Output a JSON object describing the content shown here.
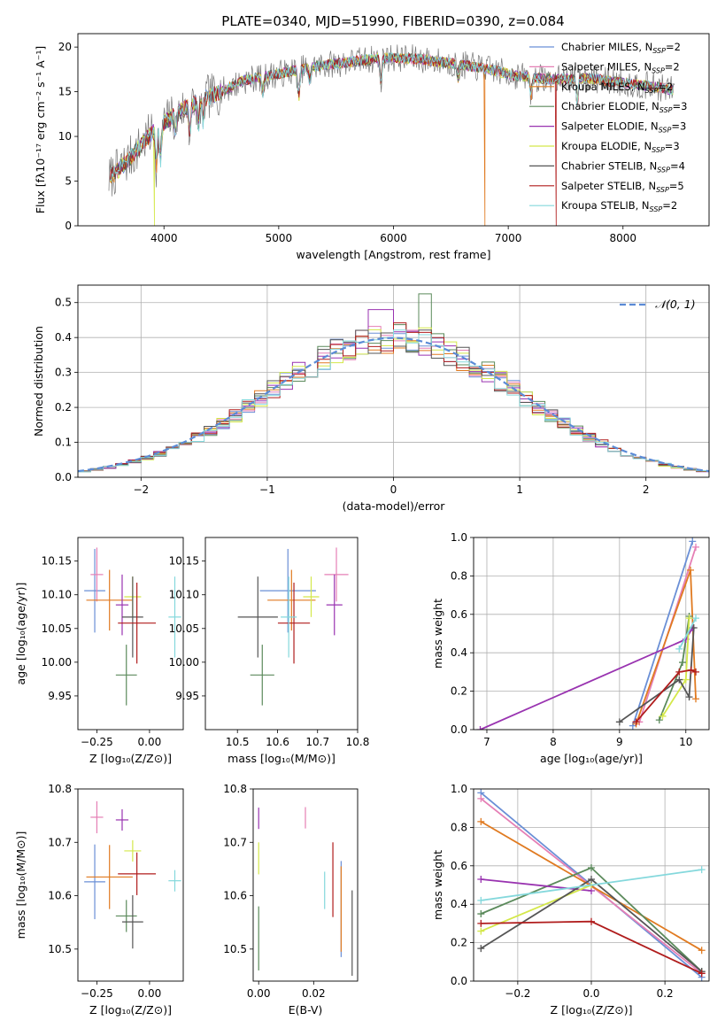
{
  "figure_title": "PLATE=0340, MJD=51990, FIBERID=0390, z=0.084",
  "colors": {
    "Chabrier MILES": "#6a8fd6",
    "Salpeter MILES": "#e57fb5",
    "Kroupa MILES": "#e07a20",
    "Chabrier ELODIE": "#5b8a5b",
    "Salpeter ELODIE": "#9933b0",
    "Kroupa ELODIE": "#d4e84a",
    "Chabrier STELIB": "#555555",
    "Salpeter STELIB": "#b01c1c",
    "Kroupa STELIB": "#84d8dc",
    "normal": "#5b8bd6"
  },
  "chart_data": [
    {
      "id": "spectrum",
      "type": "line",
      "xlabel": "wavelength [Angstrom, rest frame]",
      "ylabel": "Flux [fλ10⁻¹⁷ erg cm⁻² s⁻¹ A⁻¹]",
      "xlim": [
        3250,
        8750
      ],
      "ylim": [
        0,
        21.5
      ],
      "xticks": [
        4000,
        5000,
        6000,
        7000,
        8000
      ],
      "yticks": [
        0,
        5,
        10,
        15,
        20
      ],
      "legend_position": "top-right",
      "legend": [
        {
          "name": "Chabrier MILES",
          "label": "Chabrier MILES, N",
          "sub": "SSP",
          "tail": "=2"
        },
        {
          "name": "Salpeter MILES",
          "label": "Salpeter MILES, N",
          "sub": "SSP",
          "tail": "=2"
        },
        {
          "name": "Kroupa MILES",
          "label": "Kroupa MILES, N",
          "sub": "SSP",
          "tail": "=2"
        },
        {
          "name": "Chabrier ELODIE",
          "label": "Chabrier ELODIE, N",
          "sub": "SSP",
          "tail": "=3"
        },
        {
          "name": "Salpeter ELODIE",
          "label": "Salpeter ELODIE, N",
          "sub": "SSP",
          "tail": "=3"
        },
        {
          "name": "Kroupa ELODIE",
          "label": "Kroupa ELODIE, N",
          "sub": "SSP",
          "tail": "=3"
        },
        {
          "name": "Chabrier STELIB",
          "label": "Chabrier STELIB, N",
          "sub": "SSP",
          "tail": "=4"
        },
        {
          "name": "Salpeter STELIB",
          "label": "Salpeter STELIB, N",
          "sub": "SSP",
          "tail": "=5"
        },
        {
          "name": "Kroupa STELIB",
          "label": "Kroupa STELIB, N",
          "sub": "SSP",
          "tail": "=2"
        }
      ],
      "continuum": [
        [
          3500,
          5
        ],
        [
          3700,
          7.5
        ],
        [
          3900,
          10.5
        ],
        [
          4100,
          12.5
        ],
        [
          4300,
          14
        ],
        [
          4500,
          15
        ],
        [
          4700,
          16.3
        ],
        [
          5000,
          17
        ],
        [
          5300,
          17.8
        ],
        [
          5600,
          18.3
        ],
        [
          5900,
          18.8
        ],
        [
          6200,
          18.7
        ],
        [
          6500,
          18.2
        ],
        [
          6800,
          17.6
        ],
        [
          7100,
          16.7
        ],
        [
          7400,
          16.4
        ],
        [
          7700,
          16.5
        ],
        [
          8000,
          16.0
        ],
        [
          8300,
          15.5
        ],
        [
          8450,
          15.2
        ]
      ],
      "absorption_features": [
        [
          3934,
          4
        ],
        [
          3969,
          4
        ],
        [
          4102,
          2
        ],
        [
          4226,
          3
        ],
        [
          4300,
          3
        ],
        [
          4340,
          2.5
        ],
        [
          4861,
          2
        ],
        [
          5175,
          3
        ],
        [
          5270,
          1.5
        ],
        [
          5890,
          2.5
        ],
        [
          6563,
          1.5
        ],
        [
          7200,
          2
        ],
        [
          7600,
          3
        ]
      ],
      "vertical_drops": [
        {
          "series": "Kroupa ELODIE",
          "x": 3920
        },
        {
          "series": "Kroupa MILES",
          "x": 6795
        },
        {
          "series": "Salpeter STELIB",
          "x": 7420
        }
      ]
    },
    {
      "id": "residual_histogram",
      "type": "histogram",
      "xlabel": "(data-model)/error",
      "ylabel": "Normed distribution",
      "xlim": [
        -2.5,
        2.5
      ],
      "ylim": [
        0,
        0.55
      ],
      "xticks": [
        -2,
        -1,
        0,
        1,
        2
      ],
      "yticks": [
        0.0,
        0.1,
        0.2,
        0.3,
        0.4,
        0.5
      ],
      "grid": true,
      "bin_width": 0.1,
      "legend_position": "top-right",
      "legend_label": "𝒩(0, 1)",
      "overlay": {
        "type": "gaussian",
        "mean": 0,
        "sigma": 1,
        "style": "dashed"
      },
      "series_names": [
        "Chabrier MILES",
        "Salpeter MILES",
        "Kroupa MILES",
        "Chabrier ELODIE",
        "Salpeter ELODIE",
        "Kroupa ELODIE",
        "Chabrier STELIB",
        "Salpeter STELIB",
        "Kroupa STELIB"
      ]
    },
    {
      "id": "age_vs_Z",
      "type": "errorbar",
      "xlabel": "Z [log₁₀(Z/Z⊙)]",
      "ylabel": "age  [log₁₀(age/yr)]",
      "xlim": [
        -0.34,
        0.16
      ],
      "ylim": [
        9.9,
        10.185
      ],
      "xticks": [
        -0.25,
        0.0
      ],
      "yticks": [
        9.95,
        10.0,
        10.05,
        10.1,
        10.15
      ],
      "points": [
        {
          "series": "Chabrier MILES",
          "x": -0.26,
          "xerr": 0.05,
          "y": 10.106,
          "yerr": 0.062
        },
        {
          "series": "Salpeter MILES",
          "x": -0.25,
          "xerr": 0.03,
          "y": 10.13,
          "yerr": 0.04
        },
        {
          "series": "Kroupa MILES",
          "x": -0.19,
          "xerr": 0.11,
          "y": 10.092,
          "yerr": 0.045
        },
        {
          "series": "Chabrier ELODIE",
          "x": -0.11,
          "xerr": 0.05,
          "y": 9.981,
          "yerr": 0.045
        },
        {
          "series": "Salpeter ELODIE",
          "x": -0.13,
          "xerr": 0.03,
          "y": 10.085,
          "yerr": 0.045
        },
        {
          "series": "Kroupa ELODIE",
          "x": -0.08,
          "xerr": 0.04,
          "y": 10.097,
          "yerr": 0.03
        },
        {
          "series": "Chabrier STELIB",
          "x": -0.08,
          "xerr": 0.05,
          "y": 10.067,
          "yerr": 0.06
        },
        {
          "series": "Salpeter STELIB",
          "x": -0.06,
          "xerr": 0.09,
          "y": 10.058,
          "yerr": 0.06
        },
        {
          "series": "Kroupa STELIB",
          "x": 0.12,
          "xerr": 0.03,
          "y": 10.067,
          "yerr": 0.06
        }
      ]
    },
    {
      "id": "age_vs_mass",
      "type": "errorbar",
      "xlabel": "mass [log₁₀(M/M⊙)]",
      "ylabel": "",
      "xlim": [
        10.42,
        10.8
      ],
      "ylim": [
        9.9,
        10.185
      ],
      "xticks": [
        10.5,
        10.6,
        10.7,
        10.8
      ],
      "yticks": [
        9.95,
        10.0,
        10.05,
        10.1,
        10.15
      ],
      "points": [
        {
          "series": "Chabrier MILES",
          "x": 10.626,
          "xerr": 0.07,
          "y": 10.106,
          "yerr": 0.062
        },
        {
          "series": "Salpeter MILES",
          "x": 10.747,
          "xerr": 0.03,
          "y": 10.13,
          "yerr": 0.04
        },
        {
          "series": "Kroupa MILES",
          "x": 10.635,
          "xerr": 0.06,
          "y": 10.092,
          "yerr": 0.045
        },
        {
          "series": "Chabrier ELODIE",
          "x": 10.562,
          "xerr": 0.03,
          "y": 9.981,
          "yerr": 0.045
        },
        {
          "series": "Salpeter ELODIE",
          "x": 10.742,
          "xerr": 0.02,
          "y": 10.085,
          "yerr": 0.045
        },
        {
          "series": "Kroupa ELODIE",
          "x": 10.684,
          "xerr": 0.02,
          "y": 10.097,
          "yerr": 0.03
        },
        {
          "series": "Chabrier STELIB",
          "x": 10.551,
          "xerr": 0.05,
          "y": 10.067,
          "yerr": 0.06
        },
        {
          "series": "Salpeter STELIB",
          "x": 10.641,
          "xerr": 0.04,
          "y": 10.058,
          "yerr": 0.06
        },
        {
          "series": "Kroupa STELIB",
          "x": 10.628,
          "xerr": 0.02,
          "y": 10.067,
          "yerr": 0.06
        }
      ]
    },
    {
      "id": "weight_vs_age",
      "type": "line",
      "xlabel": "age  [log₁₀(age/yr)]",
      "ylabel": "mass weight",
      "xlim": [
        6.8,
        10.35
      ],
      "ylim": [
        0,
        1.0
      ],
      "xticks": [
        7,
        8,
        9,
        10
      ],
      "yticks": [
        0.0,
        0.2,
        0.4,
        0.6,
        0.8,
        1.0
      ],
      "grid": true,
      "series": [
        {
          "name": "Chabrier MILES",
          "points": [
            [
              9.2,
              0.02
            ],
            [
              10.1,
              0.98
            ]
          ]
        },
        {
          "name": "Salpeter MILES",
          "points": [
            [
              9.3,
              0.04
            ],
            [
              10.15,
              0.95
            ]
          ]
        },
        {
          "name": "Kroupa MILES",
          "points": [
            [
              9.25,
              0.03
            ],
            [
              10.07,
              0.83
            ],
            [
              10.15,
              0.16
            ]
          ]
        },
        {
          "name": "Chabrier ELODIE",
          "points": [
            [
              9.6,
              0.05
            ],
            [
              9.95,
              0.35
            ],
            [
              10.05,
              0.59
            ]
          ]
        },
        {
          "name": "Salpeter ELODIE",
          "points": [
            [
              6.9,
              0.0
            ],
            [
              10.0,
              0.47
            ],
            [
              10.1,
              0.53
            ]
          ]
        },
        {
          "name": "Kroupa ELODIE",
          "points": [
            [
              9.65,
              0.07
            ],
            [
              10.0,
              0.26
            ],
            [
              10.05,
              0.58
            ]
          ]
        },
        {
          "name": "Chabrier STELIB",
          "points": [
            [
              9.0,
              0.04
            ],
            [
              9.9,
              0.26
            ],
            [
              10.05,
              0.17
            ],
            [
              10.12,
              0.53
            ]
          ]
        },
        {
          "name": "Salpeter STELIB",
          "points": [
            [
              9.25,
              0.04
            ],
            [
              9.9,
              0.3
            ],
            [
              10.08,
              0.31
            ],
            [
              10.15,
              0.3
            ]
          ]
        },
        {
          "name": "Kroupa STELIB",
          "points": [
            [
              9.9,
              0.42
            ],
            [
              10.15,
              0.58
            ]
          ]
        }
      ]
    },
    {
      "id": "mass_vs_Z",
      "type": "errorbar",
      "xlabel": "Z [log₁₀(Z/Z⊙)]",
      "ylabel": "mass [log₁₀(M/M⊙)]",
      "xlim": [
        -0.34,
        0.16
      ],
      "ylim": [
        10.44,
        10.8
      ],
      "xticks": [
        -0.25,
        0.0
      ],
      "yticks": [
        10.5,
        10.6,
        10.7,
        10.8
      ],
      "points": [
        {
          "series": "Chabrier MILES",
          "x": -0.26,
          "xerr": 0.05,
          "y": 10.626,
          "yerr": 0.07
        },
        {
          "series": "Salpeter MILES",
          "x": -0.25,
          "xerr": 0.03,
          "y": 10.747,
          "yerr": 0.03
        },
        {
          "series": "Kroupa MILES",
          "x": -0.19,
          "xerr": 0.11,
          "y": 10.635,
          "yerr": 0.06
        },
        {
          "series": "Chabrier ELODIE",
          "x": -0.11,
          "xerr": 0.05,
          "y": 10.562,
          "yerr": 0.03
        },
        {
          "series": "Salpeter ELODIE",
          "x": -0.13,
          "xerr": 0.03,
          "y": 10.742,
          "yerr": 0.02
        },
        {
          "series": "Kroupa ELODIE",
          "x": -0.08,
          "xerr": 0.04,
          "y": 10.684,
          "yerr": 0.02
        },
        {
          "series": "Chabrier STELIB",
          "x": -0.08,
          "xerr": 0.05,
          "y": 10.551,
          "yerr": 0.05
        },
        {
          "series": "Salpeter STELIB",
          "x": -0.06,
          "xerr": 0.09,
          "y": 10.641,
          "yerr": 0.04
        },
        {
          "series": "Kroupa STELIB",
          "x": 0.12,
          "xerr": 0.03,
          "y": 10.628,
          "yerr": 0.02
        }
      ]
    },
    {
      "id": "mass_vs_ebv",
      "type": "errorbar",
      "xlabel": "E(B-V)",
      "ylabel": "",
      "xlim": [
        -0.002,
        0.036
      ],
      "ylim": [
        10.44,
        10.8
      ],
      "xticks": [
        0.0,
        0.02
      ],
      "yticks": [
        10.5,
        10.6,
        10.7,
        10.8
      ],
      "points": [
        {
          "series": "Chabrier MILES",
          "x": 0.03,
          "xerr": 0,
          "y": 10.575,
          "yerr": 0.09
        },
        {
          "series": "Salpeter MILES",
          "x": 0.017,
          "xerr": 0,
          "y": 10.746,
          "yerr": 0.02
        },
        {
          "series": "Kroupa MILES",
          "x": 0.03,
          "xerr": 0,
          "y": 10.575,
          "yerr": 0.08
        },
        {
          "series": "Chabrier ELODIE",
          "x": 0.0,
          "xerr": 0,
          "y": 10.52,
          "yerr": 0.06
        },
        {
          "series": "Salpeter ELODIE",
          "x": 0.0,
          "xerr": 0,
          "y": 10.745,
          "yerr": 0.02
        },
        {
          "series": "Kroupa ELODIE",
          "x": 0.0,
          "xerr": 0,
          "y": 10.67,
          "yerr": 0.03
        },
        {
          "series": "Chabrier STELIB",
          "x": 0.034,
          "xerr": 0,
          "y": 10.53,
          "yerr": 0.08
        },
        {
          "series": "Salpeter STELIB",
          "x": 0.027,
          "xerr": 0,
          "y": 10.63,
          "yerr": 0.07
        },
        {
          "series": "Kroupa STELIB",
          "x": 0.024,
          "xerr": 0,
          "y": 10.61,
          "yerr": 0.035
        }
      ]
    },
    {
      "id": "weight_vs_Z",
      "type": "line",
      "xlabel": "Z [log₁₀(Z/Z⊙)]",
      "ylabel": "mass weight",
      "xlim": [
        -0.32,
        0.32
      ],
      "ylim": [
        0,
        1.0
      ],
      "xticks": [
        -0.2,
        0.0,
        0.2
      ],
      "yticks": [
        0.0,
        0.2,
        0.4,
        0.6,
        0.8,
        1.0
      ],
      "grid": true,
      "series": [
        {
          "name": "Chabrier MILES",
          "points": [
            [
              -0.3,
              0.98
            ],
            [
              0.3,
              0.02
            ]
          ]
        },
        {
          "name": "Salpeter MILES",
          "points": [
            [
              -0.3,
              0.95
            ],
            [
              0.3,
              0.04
            ]
          ]
        },
        {
          "name": "Kroupa MILES",
          "points": [
            [
              -0.3,
              0.83
            ],
            [
              0.3,
              0.16
            ]
          ]
        },
        {
          "name": "Chabrier ELODIE",
          "points": [
            [
              -0.3,
              0.35
            ],
            [
              0.0,
              0.59
            ],
            [
              0.3,
              0.05
            ]
          ]
        },
        {
          "name": "Salpeter ELODIE",
          "points": [
            [
              -0.3,
              0.53
            ],
            [
              0.0,
              0.47
            ]
          ]
        },
        {
          "name": "Kroupa ELODIE",
          "points": [
            [
              -0.3,
              0.26
            ],
            [
              0.0,
              0.5
            ]
          ]
        },
        {
          "name": "Chabrier STELIB",
          "points": [
            [
              -0.3,
              0.17
            ],
            [
              0.0,
              0.53
            ],
            [
              0.3,
              0.05
            ]
          ]
        },
        {
          "name": "Salpeter STELIB",
          "points": [
            [
              -0.3,
              0.3
            ],
            [
              0.0,
              0.31
            ],
            [
              0.3,
              0.04
            ]
          ]
        },
        {
          "name": "Kroupa STELIB",
          "points": [
            [
              -0.3,
              0.42
            ],
            [
              0.3,
              0.58
            ]
          ]
        }
      ]
    }
  ]
}
